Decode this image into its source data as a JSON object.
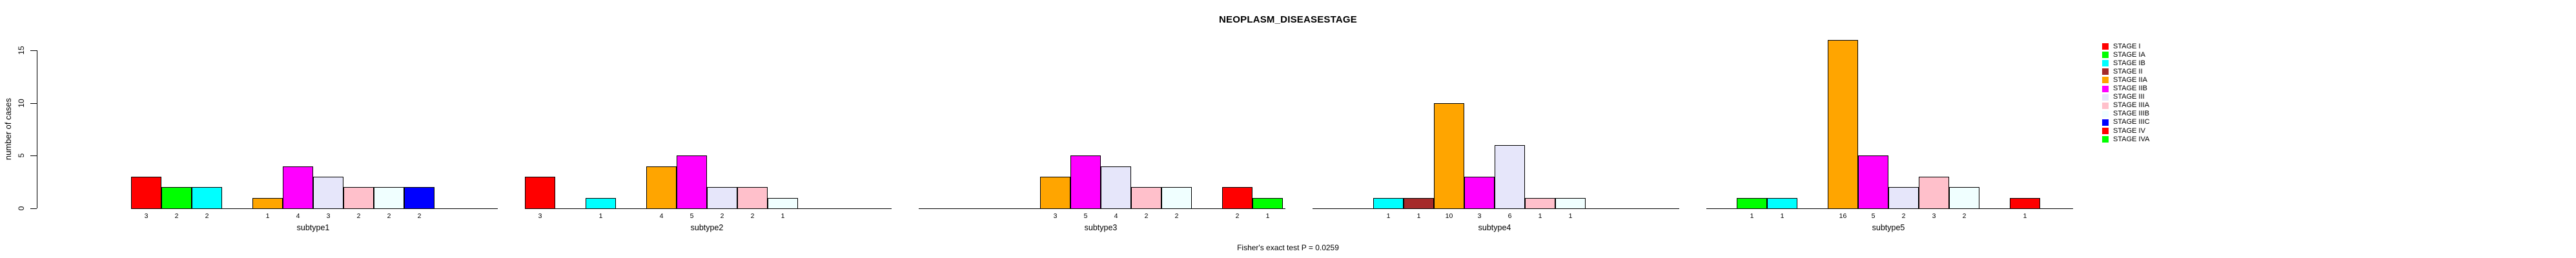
{
  "title": "NEOPLASM_DISEASESTAGE",
  "caption": "Fisher's exact test P = 0.0259",
  "y_axis": {
    "label": "number of cases",
    "ticks": [
      0,
      5,
      10,
      15
    ]
  },
  "chart_data": {
    "type": "bar",
    "title": "NEOPLASM_DISEASESTAGE",
    "xlabel": "",
    "ylabel": "number of cases",
    "ylim": [
      0,
      15
    ],
    "yticks": [
      0,
      5,
      10,
      15
    ],
    "grid": false,
    "legend_position": "right",
    "annotation": "Fisher's exact test P = 0.0259",
    "bar_value_labels_shown": true,
    "categories": [
      "subtype1",
      "subtype2",
      "subtype3",
      "subtype4",
      "subtype5"
    ],
    "series": [
      {
        "name": "STAGE I",
        "color": "#FF0000",
        "values": [
          3,
          3,
          0,
          0,
          0
        ]
      },
      {
        "name": "STAGE IA",
        "color": "#00FF00",
        "values": [
          2,
          0,
          0,
          0,
          1
        ]
      },
      {
        "name": "STAGE IB",
        "color": "#00FFFF",
        "values": [
          2,
          1,
          0,
          1,
          1
        ]
      },
      {
        "name": "STAGE II",
        "color": "#A52A2A",
        "values": [
          0,
          0,
          0,
          1,
          0
        ]
      },
      {
        "name": "STAGE IIA",
        "color": "#FFA500",
        "values": [
          1,
          4,
          3,
          10,
          16
        ]
      },
      {
        "name": "STAGE IIB",
        "color": "#FF00FF",
        "values": [
          4,
          5,
          5,
          3,
          5
        ]
      },
      {
        "name": "STAGE III",
        "color": "#E6E6FA",
        "values": [
          3,
          2,
          4,
          6,
          2
        ]
      },
      {
        "name": "STAGE IIIA",
        "color": "#FFC0CB",
        "values": [
          2,
          2,
          2,
          1,
          3
        ]
      },
      {
        "name": "STAGE IIIB",
        "color": "#F0FFFF",
        "values": [
          2,
          1,
          2,
          1,
          2
        ]
      },
      {
        "name": "STAGE IIIC",
        "color": "#0000FF",
        "values": [
          2,
          0,
          0,
          0,
          0
        ]
      },
      {
        "name": "STAGE IV",
        "color": "#FF0000",
        "values": [
          0,
          0,
          2,
          0,
          1
        ]
      },
      {
        "name": "STAGE IVA",
        "color": "#00FF00",
        "values": [
          0,
          0,
          1,
          0,
          0
        ]
      }
    ]
  }
}
